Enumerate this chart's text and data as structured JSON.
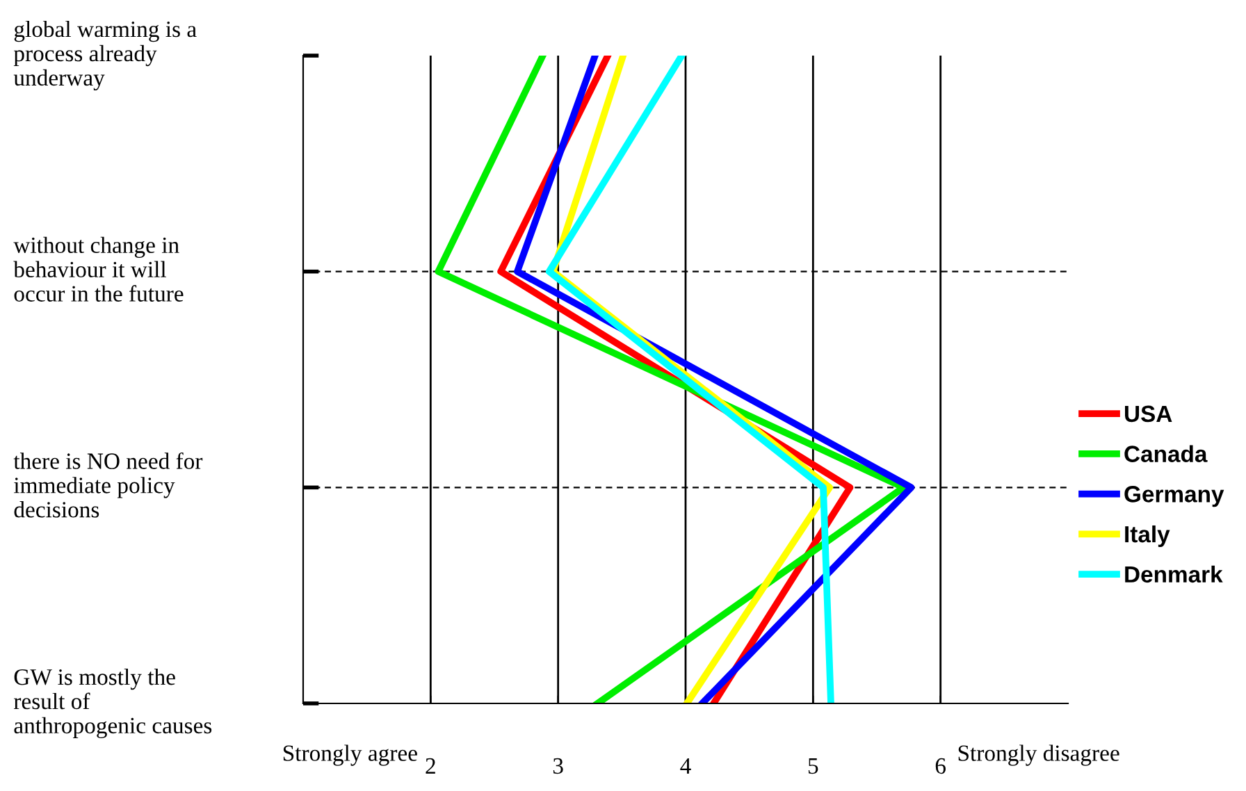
{
  "chart_data": {
    "type": "line",
    "orientation": "horizontal",
    "categories": [
      "global warming is a\nprocess already\nunderway",
      "without change in\nbehaviour it will\noccur in the future",
      "there is NO need for\nimmediate policy\ndecisions",
      "GW is mostly the\nresult of\nanthropogenic causes"
    ],
    "series": [
      {
        "name": "USA",
        "color": "#ff0000",
        "values": [
          3.39,
          2.55,
          5.29,
          4.22
        ]
      },
      {
        "name": "Canada",
        "color": "#00ee00",
        "values": [
          2.88,
          2.06,
          5.71,
          3.31
        ]
      },
      {
        "name": "Germany",
        "color": "#0000ff",
        "values": [
          3.29,
          2.68,
          5.77,
          4.13
        ]
      },
      {
        "name": "Italy",
        "color": "#ffff00",
        "values": [
          3.51,
          2.96,
          5.13,
          4.01
        ]
      },
      {
        "name": "Denmark",
        "color": "#00ffff",
        "values": [
          3.97,
          2.93,
          5.08,
          5.14
        ]
      }
    ],
    "xlim": [
      1,
      7
    ],
    "xticks": [
      2,
      3,
      4,
      5,
      6
    ],
    "annotations": [
      "Strongly agree",
      "Strongly disagree"
    ],
    "grid": true,
    "legend": "right",
    "marker": "none",
    "line_style": "solid"
  }
}
